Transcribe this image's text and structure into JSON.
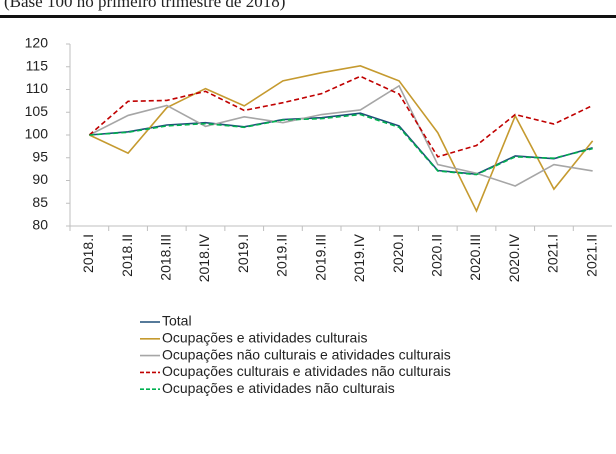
{
  "chart_data": {
    "type": "line",
    "subtitle": "(Base 100 no primeiro trimestre de 2018)",
    "categories": [
      "2018.I",
      "2018.II",
      "2018.III",
      "2018.IV",
      "2019.I",
      "2019.II",
      "2019.III",
      "2019.IV",
      "2020.I",
      "2020.II",
      "2020.III",
      "2020.IV",
      "2021.I",
      "2021.II"
    ],
    "ylim": [
      80,
      120
    ],
    "yticks": [
      80,
      85,
      90,
      95,
      100,
      105,
      110,
      115,
      120
    ],
    "grid": false,
    "legend": "bottom",
    "series": [
      {
        "name": "Total",
        "color": "#1f4e79",
        "dashed": false,
        "values": [
          100,
          100.7,
          102.2,
          102.7,
          101.8,
          103.4,
          103.8,
          104.8,
          102.0,
          92.2,
          91.4,
          95.4,
          94.8,
          97.2
        ]
      },
      {
        "name": "Ocupações e atividades culturais",
        "color": "#c59a2f",
        "dashed": false,
        "values": [
          100,
          96.0,
          106.0,
          110.2,
          106.4,
          111.9,
          113.7,
          115.2,
          111.9,
          100.5,
          83.3,
          104.2,
          88.1,
          98.7
        ]
      },
      {
        "name": "Ocupações não culturais e atividades culturais",
        "color": "#a6a6a6",
        "dashed": false,
        "values": [
          100,
          104.3,
          106.5,
          101.9,
          104.0,
          102.7,
          104.5,
          105.5,
          110.8,
          93.5,
          91.6,
          88.8,
          93.5,
          92.1
        ]
      },
      {
        "name": "Ocupações culturais e atividades não culturais",
        "color": "#c00000",
        "dashed": true,
        "values": [
          100,
          107.4,
          107.6,
          109.6,
          105.4,
          107.1,
          109.1,
          112.9,
          109.0,
          95.2,
          97.7,
          104.5,
          102.4,
          106.5
        ]
      },
      {
        "name": "Ocupações e atividades não culturais",
        "color": "#00b050",
        "dashed": true,
        "values": [
          100,
          100.6,
          102.0,
          102.5,
          101.7,
          103.3,
          103.6,
          104.5,
          101.7,
          92.1,
          91.3,
          95.2,
          94.9,
          97.0
        ]
      }
    ]
  }
}
